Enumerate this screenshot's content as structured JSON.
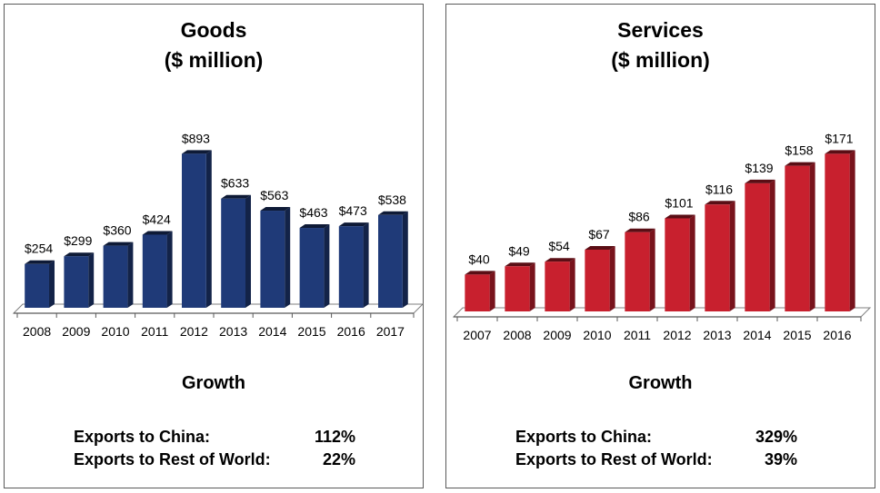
{
  "colors": {
    "goods_bar": "#1f3a78",
    "services_bar": "#c8202e"
  },
  "chart_data": [
    {
      "type": "bar",
      "title": "Goods",
      "subtitle": "($ million)",
      "categories": [
        "2008",
        "2009",
        "2010",
        "2011",
        "2012",
        "2013",
        "2014",
        "2015",
        "2016",
        "2017"
      ],
      "values": [
        254,
        299,
        360,
        424,
        893,
        633,
        563,
        463,
        473,
        538
      ],
      "data_labels": [
        "$254",
        "$299",
        "$360",
        "$424",
        "$893",
        "$633",
        "$563",
        "$463",
        "$473",
        "$538"
      ],
      "ylim": [
        0,
        1000
      ],
      "grid": false,
      "legend": "none"
    },
    {
      "type": "bar",
      "title": "Services",
      "subtitle": "($ million)",
      "categories": [
        "2007",
        "2008",
        "2009",
        "2010",
        "2011",
        "2012",
        "2013",
        "2014",
        "2015",
        "2016"
      ],
      "values": [
        40,
        49,
        54,
        67,
        86,
        101,
        116,
        139,
        158,
        171
      ],
      "data_labels": [
        "$40",
        "$49",
        "$54",
        "$67",
        "$86",
        "$101",
        "$116",
        "$139",
        "$158",
        "$171"
      ],
      "ylim": [
        0,
        200
      ],
      "grid": false,
      "legend": "none"
    }
  ],
  "goods": {
    "title": "Goods",
    "subtitle": "($ million)",
    "growth_heading": "Growth",
    "stats": [
      {
        "label": "Exports to China:",
        "value": "112%"
      },
      {
        "label": "Exports to Rest of World:",
        "value": "22%"
      }
    ]
  },
  "services": {
    "title": "Services",
    "subtitle": "($ million)",
    "growth_heading": "Growth",
    "stats": [
      {
        "label": "Exports to China:",
        "value": "329%"
      },
      {
        "label": "Exports to Rest of World:",
        "value": "39%"
      }
    ]
  }
}
